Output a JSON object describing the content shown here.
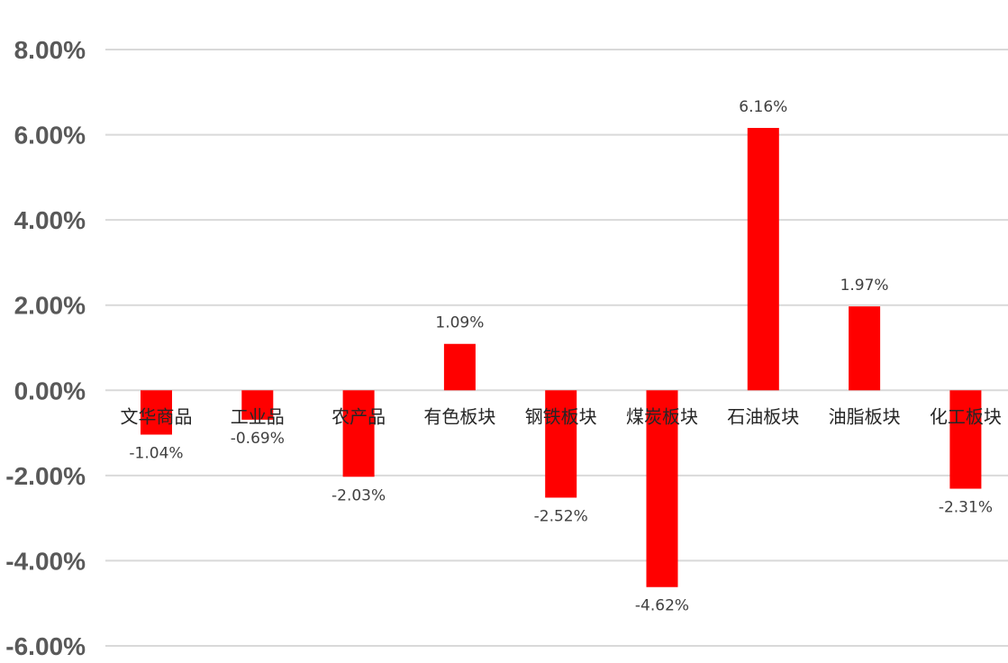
{
  "chart_data": {
    "type": "bar",
    "categories": [
      "文华商品",
      "工业品",
      "农产品",
      "有色板块",
      "钢铁板块",
      "煤炭板块",
      "石油板块",
      "油脂板块",
      "化工板块"
    ],
    "values": [
      -1.04,
      -0.69,
      -2.03,
      1.09,
      -2.52,
      -4.62,
      6.16,
      1.97,
      -2.31
    ],
    "value_labels": [
      "-1.04%",
      "-0.69%",
      "-2.03%",
      "1.09%",
      "-2.52%",
      "-4.62%",
      "6.16%",
      "1.97%",
      "-2.31%"
    ],
    "y_ticks": [
      8,
      6,
      4,
      2,
      0,
      -2,
      -4,
      -6
    ],
    "y_tick_labels": [
      "8.00%",
      "6.00%",
      "4.00%",
      "2.00%",
      "0.00%",
      "-2.00%",
      "-4.00%",
      "-6.00%"
    ],
    "ylim": [
      -6,
      8
    ],
    "unit": "%",
    "title": "",
    "xlabel": "",
    "ylabel": "",
    "grid": true,
    "legend": "none",
    "colors": {
      "bar": "#ff0000",
      "grid": "#d9d9d9",
      "tick_text": "#595959",
      "category_text": "#262626",
      "data_label_text": "#404040"
    }
  }
}
